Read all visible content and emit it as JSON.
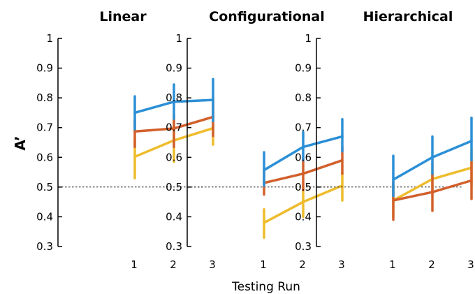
{
  "chart_data": {
    "type": "line",
    "ylabel": "A’",
    "xlabel": "Testing Run",
    "ylim": [
      0.3,
      1.0
    ],
    "yticks": [
      0.3,
      0.4,
      0.5,
      0.6,
      0.7,
      0.8,
      0.9,
      1.0
    ],
    "ytick_labels": [
      "0.3",
      "0.4",
      "0.5",
      "0.6",
      "0.7",
      "0.8",
      "0.9",
      "1"
    ],
    "x": [
      1,
      2,
      3
    ],
    "xtick_labels": [
      "1",
      "2",
      "3"
    ],
    "reference_line": 0.5,
    "colors": [
      "#2b8fd6",
      "#d2602c",
      "#eebc2c"
    ],
    "panels": [
      {
        "title": "Linear",
        "series": [
          {
            "values": [
              0.75,
              0.787,
              0.793
            ],
            "err_low": [
              0.695,
              0.73,
              0.722
            ],
            "err_high": [
              0.805,
              0.845,
              0.863
            ]
          },
          {
            "values": [
              0.687,
              0.697,
              0.736
            ],
            "err_low": [
              0.635,
              0.635,
              0.672
            ],
            "err_high": [
              0.725,
              0.74,
              0.8
            ]
          },
          {
            "values": [
              0.602,
              0.657,
              0.698
            ],
            "err_low": [
              0.53,
              0.585,
              0.643
            ],
            "err_high": [
              0.665,
              0.73,
              0.762
            ]
          }
        ]
      },
      {
        "title": "Configurational",
        "series": [
          {
            "values": [
              0.557,
              0.635,
              0.67
            ],
            "err_low": [
              0.505,
              0.59,
              0.62
            ],
            "err_high": [
              0.617,
              0.685,
              0.728
            ]
          },
          {
            "values": [
              0.514,
              0.545,
              0.59
            ],
            "err_low": [
              0.475,
              0.49,
              0.545
            ],
            "err_high": [
              0.555,
              0.6,
              0.635
            ]
          },
          {
            "values": [
              0.38,
              0.45,
              0.505
            ],
            "err_low": [
              0.33,
              0.4,
              0.455
            ],
            "err_high": [
              0.425,
              0.5,
              0.55
            ]
          }
        ]
      },
      {
        "title": "Hierarchical",
        "series": [
          {
            "values": [
              0.525,
              0.6,
              0.655
            ],
            "err_low": [
              0.47,
              0.545,
              0.59
            ],
            "err_high": [
              0.605,
              0.67,
              0.733
            ]
          },
          {
            "values": [
              0.455,
              0.483,
              0.522
            ],
            "err_low": [
              0.39,
              0.42,
              0.46
            ],
            "err_high": [
              0.52,
              0.545,
              0.585
            ]
          },
          {
            "values": [
              0.455,
              0.527,
              0.565
            ],
            "err_low": [
              0.4,
              0.475,
              0.505
            ],
            "err_high": [
              0.51,
              0.58,
              0.625
            ]
          }
        ]
      }
    ]
  }
}
